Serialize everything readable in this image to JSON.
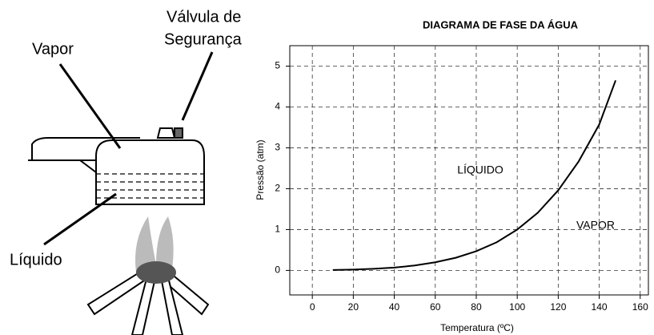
{
  "illustration": {
    "labels": [
      "Vapor",
      "Válvula de",
      "Segurança",
      "Líquido"
    ]
  },
  "chart_data": {
    "type": "line",
    "title": "DIAGRAMA DE FASE DA ÁGUA",
    "x_label": "Temperatura (ºC)",
    "y_label": "Pressão (atm)",
    "annotations": [
      "LÍQUIDO",
      "VAPOR"
    ],
    "x": [
      10,
      20,
      30,
      40,
      50,
      60,
      70,
      80,
      90,
      100,
      110,
      120,
      130,
      140,
      148
    ],
    "values": [
      0.01,
      0.02,
      0.04,
      0.07,
      0.12,
      0.2,
      0.31,
      0.47,
      0.69,
      1.0,
      1.41,
      1.96,
      2.67,
      3.57,
      4.65
    ],
    "color": "#000000",
    "xlim": [
      -11,
      164
    ],
    "ylim": [
      -0.6,
      5.5
    ],
    "xticks": [
      0,
      20,
      40,
      60,
      80,
      100,
      120,
      140,
      160
    ],
    "yticks": [
      0,
      1,
      2,
      3,
      4,
      5
    ],
    "grid": true
  }
}
